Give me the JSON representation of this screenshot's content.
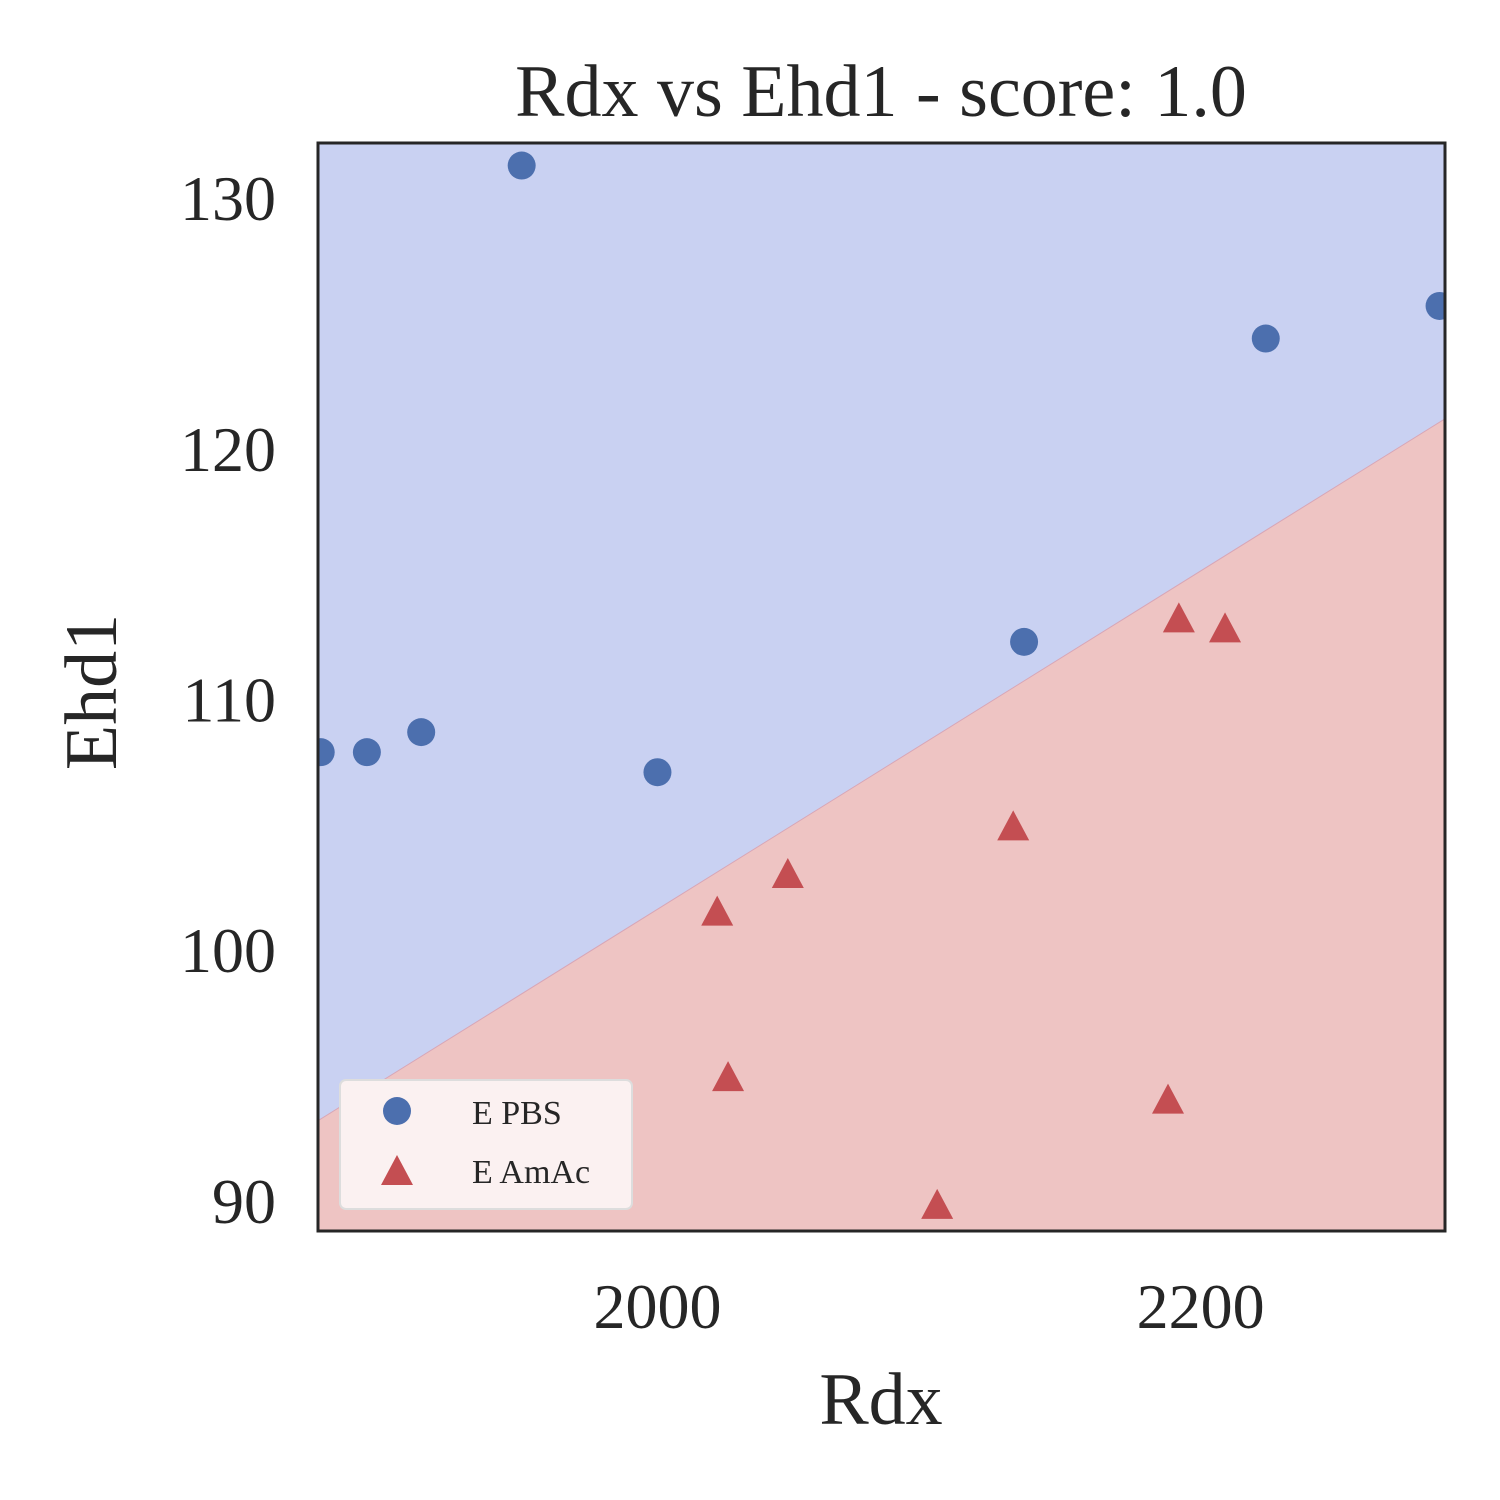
{
  "chart_data": {
    "type": "scatter",
    "title": "Rdx vs Ehd1 - score: 1.0",
    "xlabel": "Rdx",
    "ylabel": "Ehd1",
    "xlim": [
      1875,
      2290
    ],
    "ylim": [
      88.8,
      132.2
    ],
    "xticks": [
      2000,
      2200
    ],
    "yticks": [
      90,
      100,
      110,
      120,
      130
    ],
    "grid": false,
    "legend_position": "lower-left",
    "decision_boundary": {
      "x": [
        1875,
        2290
      ],
      "y": [
        93.2,
        121.2
      ]
    },
    "regions": {
      "above_color": "#c9d1f2",
      "below_color": "#eec4c3"
    },
    "series": [
      {
        "name": "E PBS",
        "marker": "circle",
        "color": "#4c6fae",
        "points": [
          {
            "x": 1876,
            "y": 107.9
          },
          {
            "x": 1893,
            "y": 107.9
          },
          {
            "x": 1913,
            "y": 108.7
          },
          {
            "x": 1950,
            "y": 131.3
          },
          {
            "x": 2000,
            "y": 107.1
          },
          {
            "x": 2135,
            "y": 112.3
          },
          {
            "x": 2224,
            "y": 124.4
          },
          {
            "x": 2288,
            "y": 125.7
          }
        ]
      },
      {
        "name": "E AmAc",
        "marker": "triangle",
        "color": "#c44e52",
        "points": [
          {
            "x": 2022,
            "y": 101.5
          },
          {
            "x": 2026,
            "y": 94.9
          },
          {
            "x": 2048,
            "y": 103.0
          },
          {
            "x": 2103,
            "y": 89.8
          },
          {
            "x": 2131,
            "y": 104.9
          },
          {
            "x": 2188,
            "y": 94.0
          },
          {
            "x": 2192,
            "y": 113.2
          },
          {
            "x": 2209,
            "y": 112.8
          }
        ]
      }
    ]
  }
}
